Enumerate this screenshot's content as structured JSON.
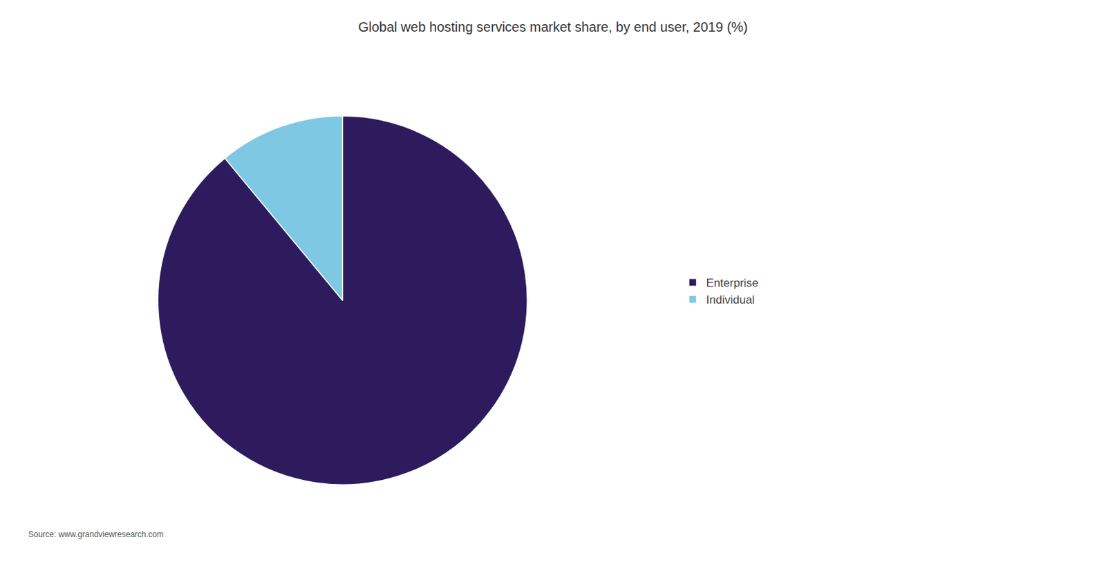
{
  "chart_data": {
    "type": "pie",
    "title": "Global web hosting services market share, by end user, 2019 (%)",
    "categories": [
      "Enterprise",
      "Individual"
    ],
    "values": [
      89,
      11
    ],
    "colors": [
      "#2d1b5e",
      "#7ec8e3"
    ],
    "legend": "right",
    "annotations": [
      {
        "text": "Source: www.grandviewresearch.com"
      }
    ]
  }
}
